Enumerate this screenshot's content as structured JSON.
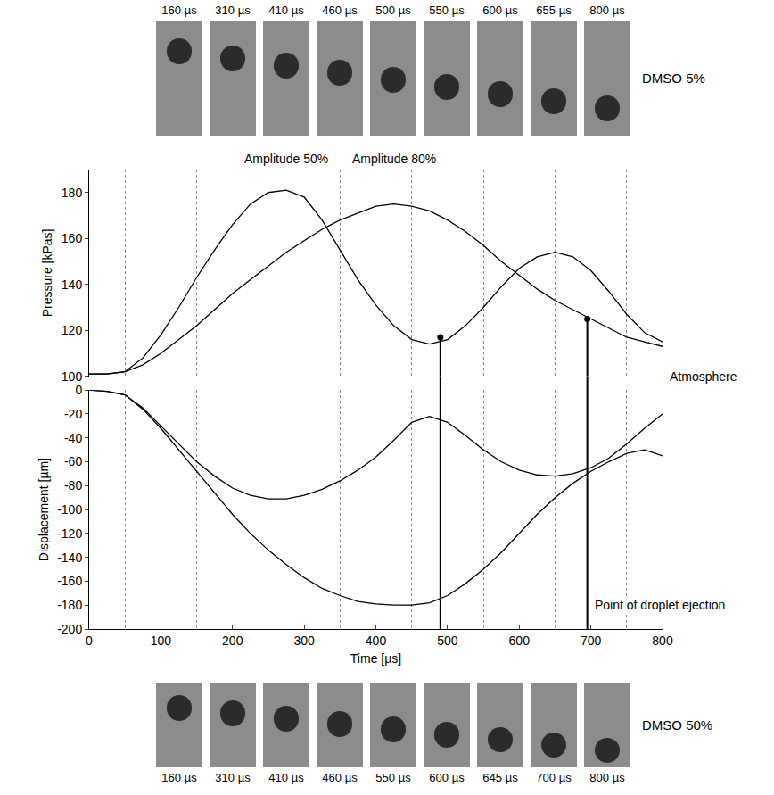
{
  "photo_strips": [
    {
      "label": "DMSO 5%",
      "times": [
        "160 µs",
        "310 µs",
        "410 µs",
        "460 µs",
        "500 µs",
        "550 µs",
        "600 µs",
        "655 µs",
        "800 µs"
      ]
    },
    {
      "label": "DMSO 50%",
      "times": [
        "160 µs",
        "310 µs",
        "410 µs",
        "460 µs",
        "550 µs",
        "600 µs",
        "645 µs",
        "700 µs",
        "800 µs"
      ]
    }
  ],
  "chart_data": [
    {
      "type": "line",
      "ylabel": "Pressure [kPas]",
      "tick_labels": "y",
      "grid": true,
      "x": [
        0,
        25,
        50,
        75,
        100,
        125,
        150,
        175,
        200,
        225,
        250,
        275,
        300,
        325,
        350,
        375,
        400,
        425,
        450,
        475,
        500,
        525,
        550,
        575,
        600,
        625,
        650,
        675,
        700,
        725,
        750,
        775,
        800
      ],
      "xlim": [
        0,
        800
      ],
      "xticks": [
        0,
        100,
        200,
        300,
        400,
        500,
        600,
        700,
        800
      ],
      "ylim": [
        100,
        190
      ],
      "yticks": [
        100,
        120,
        140,
        160,
        180
      ],
      "series": [
        {
          "name": "Amplitude 50%",
          "color": "#000000",
          "values": [
            101,
            101,
            102,
            108,
            118,
            130,
            143,
            155,
            166,
            175,
            180,
            181,
            178,
            168,
            155,
            142,
            131,
            122,
            116,
            114,
            116,
            122,
            130,
            139,
            147,
            152,
            154,
            152,
            146,
            137,
            127,
            119,
            115
          ]
        },
        {
          "name": "Amplitude 80%",
          "color": "#000000",
          "values": [
            101,
            101,
            102,
            105,
            110,
            116,
            122,
            129,
            136,
            142,
            148,
            154,
            159,
            164,
            168,
            171,
            174,
            175,
            174,
            172,
            168,
            163,
            157,
            150,
            144,
            138,
            133,
            129,
            125,
            121,
            117,
            115,
            113
          ]
        }
      ],
      "points": [
        {
          "x": 490,
          "y": 117
        },
        {
          "x": 695,
          "y": 125
        }
      ],
      "annotations": [
        {
          "text": "Atmosphere",
          "x": 800,
          "y": 100
        }
      ]
    },
    {
      "type": "line",
      "xlabel": "Time [µs]",
      "ylabel": "Displacement [µm]",
      "grid": true,
      "x": [
        0,
        25,
        50,
        75,
        100,
        125,
        150,
        175,
        200,
        225,
        250,
        275,
        300,
        325,
        350,
        375,
        400,
        425,
        450,
        475,
        500,
        525,
        550,
        575,
        600,
        625,
        650,
        675,
        700,
        725,
        750,
        775,
        800
      ],
      "xlim": [
        0,
        800
      ],
      "xticks": [
        0,
        100,
        200,
        300,
        400,
        500,
        600,
        700,
        800
      ],
      "ylim": [
        -200,
        0
      ],
      "yticks": [
        0,
        -20,
        -40,
        -60,
        -80,
        -100,
        -120,
        -140,
        -160,
        -180,
        -200
      ],
      "series": [
        {
          "color": "#000000",
          "values": [
            0,
            -1,
            -4,
            -15,
            -30,
            -45,
            -60,
            -72,
            -82,
            -88,
            -91,
            -91,
            -88,
            -83,
            -76,
            -67,
            -56,
            -42,
            -27,
            -22,
            -27,
            -38,
            -50,
            -60,
            -67,
            -71,
            -72,
            -70,
            -65,
            -57,
            -45,
            -32,
            -20
          ]
        },
        {
          "color": "#000000",
          "values": [
            0,
            -1,
            -4,
            -16,
            -32,
            -50,
            -68,
            -86,
            -104,
            -120,
            -134,
            -146,
            -157,
            -166,
            -172,
            -177,
            -179,
            -180,
            -180,
            -178,
            -172,
            -162,
            -150,
            -136,
            -120,
            -104,
            -90,
            -78,
            -68,
            -60,
            -53,
            -50,
            -55
          ]
        }
      ],
      "annotations": [
        {
          "text": "Point of droplet ejection",
          "x": 695,
          "y": -180
        }
      ]
    }
  ]
}
